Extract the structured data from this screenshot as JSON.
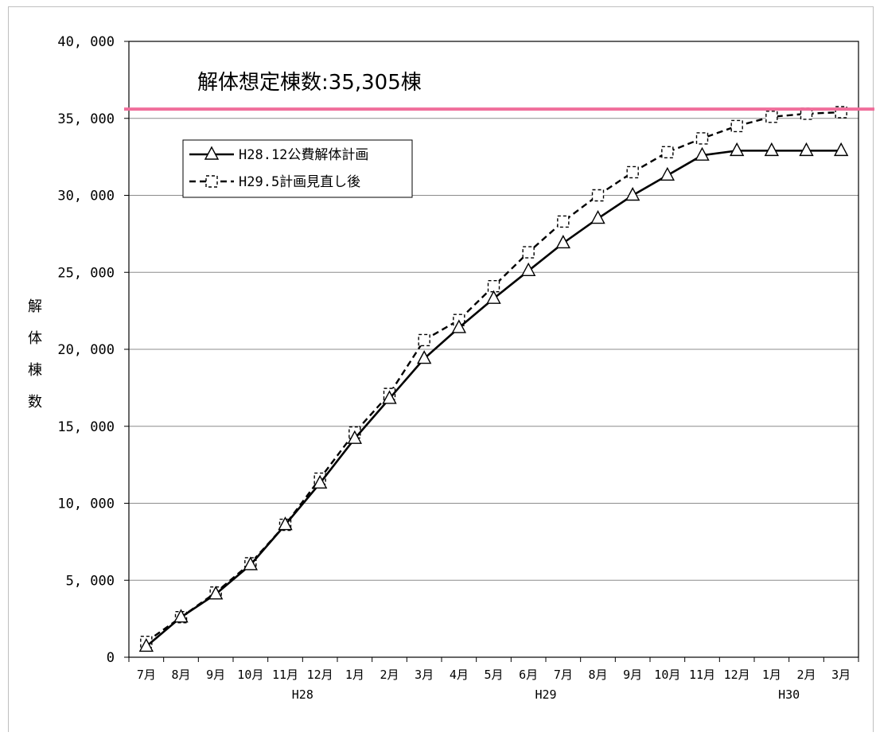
{
  "chart_data": {
    "type": "line",
    "title": "",
    "annotation": "解体想定棟数:35,305棟",
    "ylabel": "解体棟数",
    "ylim": [
      0,
      40000
    ],
    "yticks": [
      "0",
      "5, 000",
      "10, 000",
      "15, 000",
      "20, 000",
      "25, 000",
      "30, 000",
      "35, 000",
      "40, 000"
    ],
    "categories": [
      "7月",
      "8月",
      "9月",
      "10月",
      "11月",
      "12月",
      "1月",
      "2月",
      "3月",
      "4月",
      "5月",
      "6月",
      "7月",
      "8月",
      "9月",
      "10月",
      "11月",
      "12月",
      "1月",
      "2月",
      "3月"
    ],
    "year_labels": [
      {
        "label": "H28",
        "category_index": 4
      },
      {
        "label": "H29",
        "category_index": 11
      },
      {
        "label": "H30",
        "category_index": 18
      }
    ],
    "reference_line": {
      "value": 35600,
      "color": "#f06e9b"
    },
    "legend_position": "top-left",
    "grid": true,
    "series": [
      {
        "name": "H28.12公費解体計画",
        "style": "solid",
        "marker": "triangle",
        "color": "#000000",
        "values": [
          700,
          2600,
          4100,
          6000,
          8600,
          11300,
          14200,
          16800,
          19400,
          21400,
          23300,
          25100,
          26900,
          28500,
          30000,
          31300,
          32600,
          32900,
          32900,
          32900,
          32900
        ]
      },
      {
        "name": "H29.5計画見直し後",
        "style": "dashed",
        "marker": "square",
        "color": "#000000",
        "values": [
          1000,
          2600,
          4200,
          6100,
          8600,
          11600,
          14600,
          17100,
          20600,
          21900,
          24100,
          26300,
          28300,
          30000,
          31500,
          32800,
          33700,
          34500,
          35100,
          35300,
          35400
        ]
      }
    ]
  }
}
